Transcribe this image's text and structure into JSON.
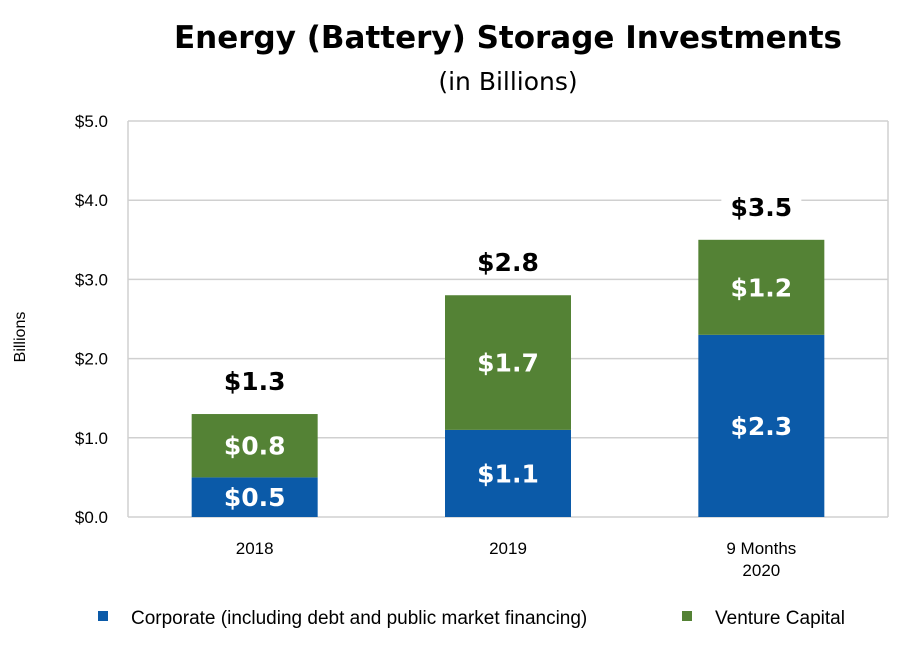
{
  "chart_data": {
    "type": "bar",
    "stacked": true,
    "title": "Energy (Battery) Storage Investments",
    "subtitle": "(in Billions)",
    "ylabel": "Billions",
    "xlabel": "",
    "ylim": [
      0,
      5
    ],
    "yticks": [
      "$0.0",
      "$1.0",
      "$2.0",
      "$3.0",
      "$4.0",
      "$5.0"
    ],
    "grid": true,
    "legend_position": "bottom",
    "categories": [
      [
        "2018"
      ],
      [
        "2019"
      ],
      [
        "9 Months",
        "2020"
      ]
    ],
    "series": [
      {
        "name": "Corporate (including debt and public market financing)",
        "color": "#0b5aa8",
        "values": [
          0.5,
          1.1,
          2.3
        ],
        "labels": [
          "$0.5",
          "$1.1",
          "$2.3"
        ]
      },
      {
        "name": "Venture Capital",
        "color": "#548235",
        "values": [
          0.8,
          1.7,
          1.2
        ],
        "labels": [
          "$0.8",
          "$1.7",
          "$1.2"
        ]
      }
    ],
    "totals": [
      1.3,
      2.8,
      3.5
    ],
    "total_labels": [
      "$1.3",
      "$2.8",
      "$3.5"
    ]
  }
}
